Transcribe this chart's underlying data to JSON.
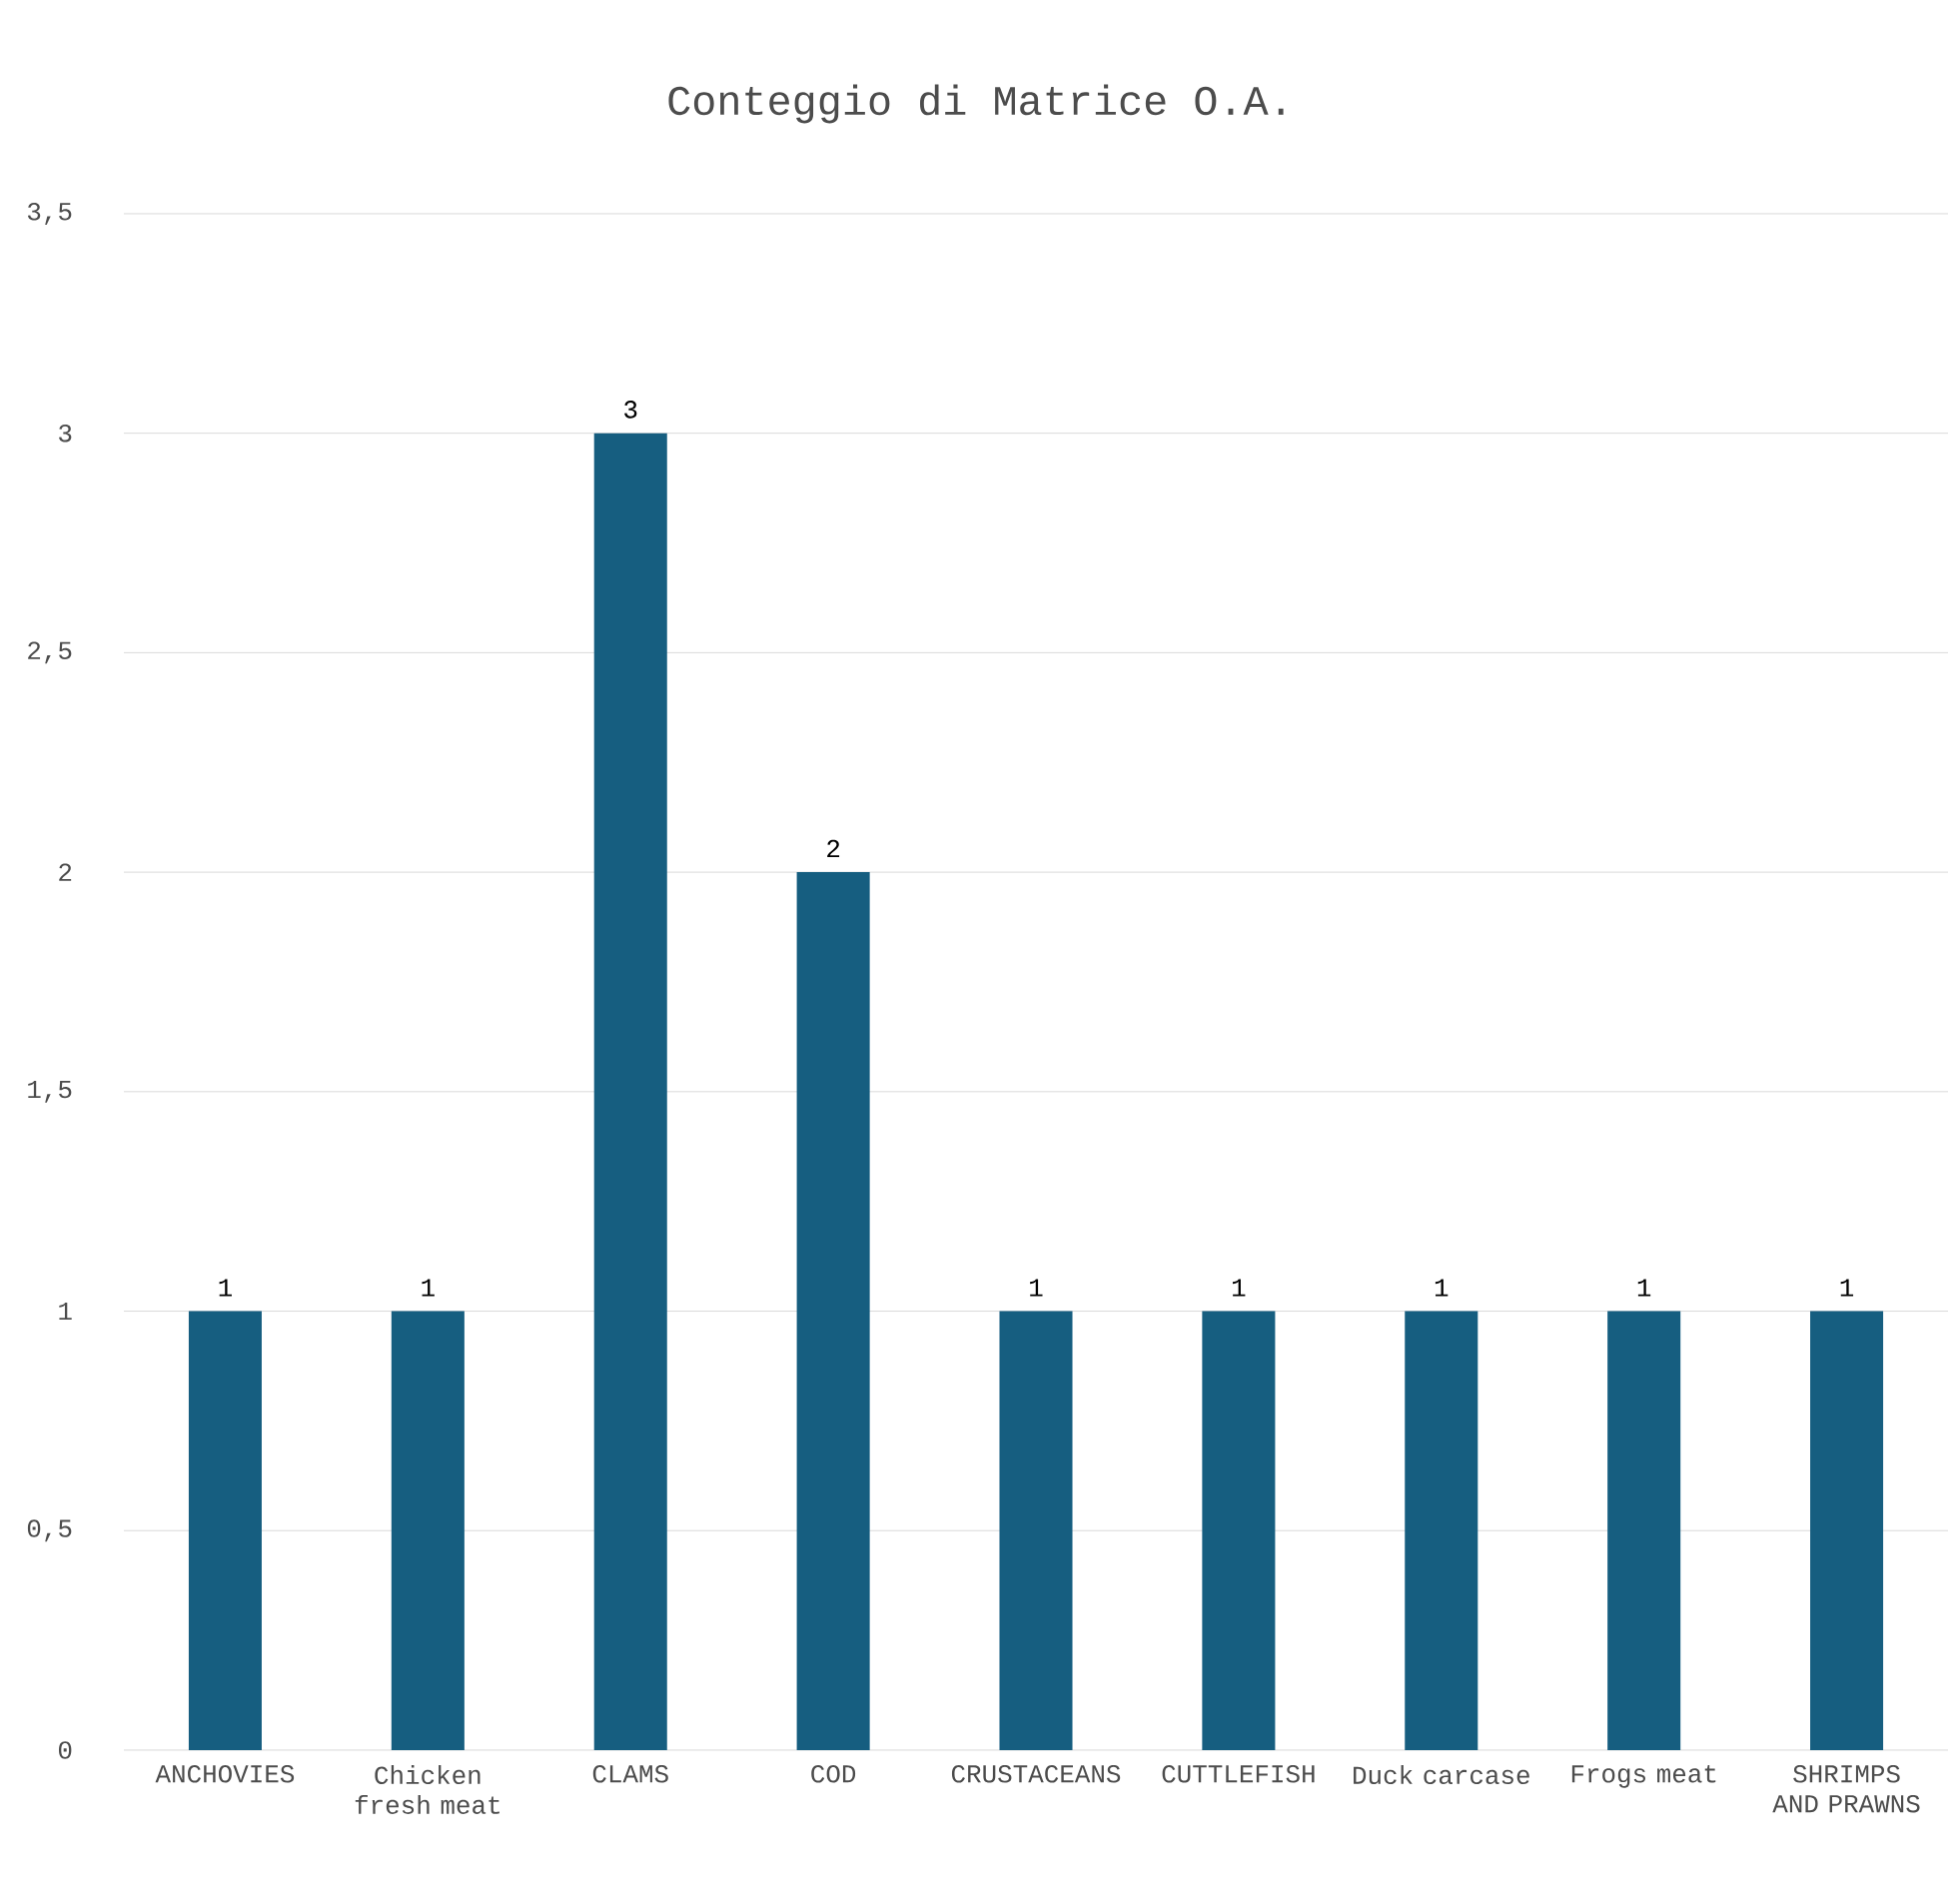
{
  "chart_data": {
    "type": "bar",
    "title": "Conteggio di Matrice O.A.",
    "categories": [
      "ANCHOVIES",
      "Chicken fresh meat",
      "CLAMS",
      "COD",
      "CRUSTACEANS",
      "CUTTLEFISH",
      "Duck carcase",
      "Frogs meat",
      "SHRIMPS AND PRAWNS"
    ],
    "values": [
      1,
      1,
      3,
      2,
      1,
      1,
      1,
      1,
      1
    ],
    "color": "#165e80",
    "ylim": [
      0,
      3.5
    ],
    "yticks": [
      0,
      {
        "value": 0.5,
        "label": "0,5"
      },
      1,
      {
        "value": 1.5,
        "label": "1,5"
      },
      2,
      {
        "value": 2.5,
        "label": "2,5"
      },
      3,
      {
        "value": 3.5,
        "label": "3,5"
      }
    ],
    "grid": true,
    "data_labels": true
  }
}
